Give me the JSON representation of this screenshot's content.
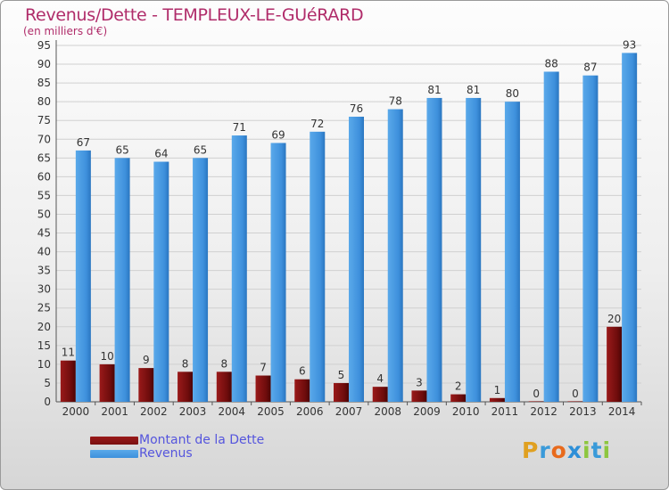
{
  "chart_data": {
    "type": "bar",
    "title": "Revenus/Dette - TEMPLEUX-LE-GUéRARD",
    "subtitle": "(en milliers d'€)",
    "categories": [
      "2000",
      "2001",
      "2002",
      "2003",
      "2004",
      "2005",
      "2006",
      "2007",
      "2008",
      "2009",
      "2010",
      "2011",
      "2012",
      "2013",
      "2014"
    ],
    "series": [
      {
        "name": "Montant de la Dette",
        "color": "#7a1010",
        "values": [
          11,
          10,
          9,
          8,
          8,
          7,
          6,
          5,
          4,
          3,
          2,
          1,
          0,
          0,
          20
        ]
      },
      {
        "name": "Revenus",
        "color": "#3d90dc",
        "values": [
          67,
          65,
          64,
          65,
          71,
          69,
          72,
          76,
          78,
          81,
          81,
          80,
          88,
          87,
          93
        ]
      }
    ],
    "y_ticks": [
      "0",
      "5",
      "10",
      "15",
      "20",
      "25",
      "30",
      "35",
      "40",
      "45",
      "50",
      "55",
      "60",
      "65",
      "70",
      "75",
      "80",
      "85",
      "90",
      "95"
    ],
    "ylim": [
      0,
      95
    ],
    "grid": true,
    "legend_position": "bottom-left"
  },
  "brand": {
    "letters": [
      "P",
      "r",
      "o",
      "x",
      "i",
      "t",
      "i"
    ],
    "colors": [
      "#e0a020",
      "#3a9ad9",
      "#e86a1c",
      "#2d8fd8",
      "#8dc63f",
      "#3a9ad9",
      "#8dc63f"
    ]
  }
}
